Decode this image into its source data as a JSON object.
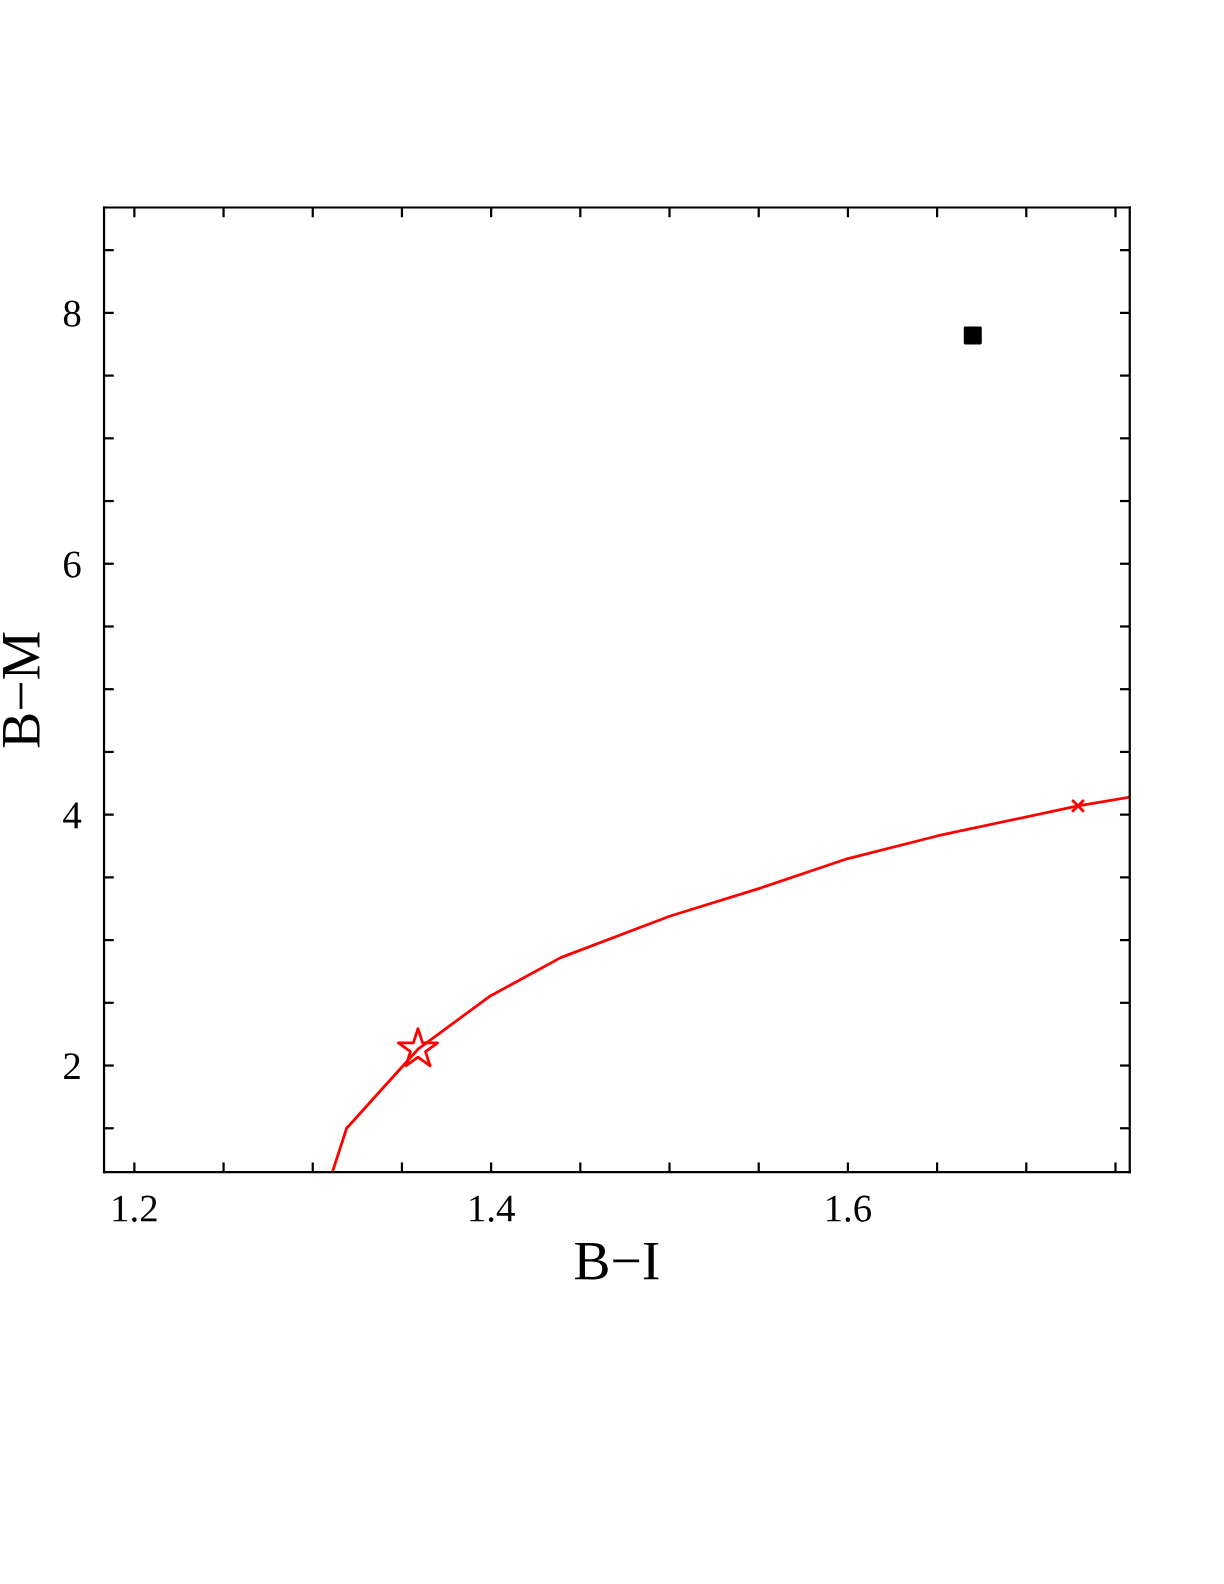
{
  "chart_data": {
    "type": "line",
    "xlabel": "B−I",
    "ylabel": "B−M",
    "xlim": [
      1.183,
      1.758
    ],
    "ylim": [
      1.15,
      8.84
    ],
    "xticks": [
      1.2,
      {
        "value": 1.25,
        "label": null
      },
      {
        "value": 1.3,
        "label": null
      },
      {
        "value": 1.35,
        "label": null
      },
      1.4,
      {
        "value": 1.45,
        "label": null
      },
      {
        "value": 1.5,
        "label": null
      },
      {
        "value": 1.55,
        "label": null
      },
      1.6,
      {
        "value": 1.65,
        "label": null
      },
      {
        "value": 1.7,
        "label": null
      },
      {
        "value": 1.75,
        "label": null
      }
    ],
    "yticks": [
      {
        "value": 1.5,
        "label": null
      },
      2,
      {
        "value": 2.5,
        "label": null
      },
      {
        "value": 3,
        "label": null
      },
      {
        "value": 3.5,
        "label": null
      },
      4,
      {
        "value": 4.5,
        "label": null
      },
      {
        "value": 5,
        "label": null
      },
      {
        "value": 5.5,
        "label": null
      },
      6,
      {
        "value": 6.5,
        "label": null
      },
      {
        "value": 7,
        "label": null
      },
      {
        "value": 7.5,
        "label": null
      },
      8,
      {
        "value": 8.5,
        "label": null
      }
    ],
    "grid": false,
    "series": [
      {
        "color": "#ff0000",
        "marker": "none",
        "line_style": "solid",
        "x": [
          1.311,
          1.319,
          1.359,
          1.399,
          1.439,
          1.5,
          1.55,
          1.6,
          1.65,
          1.729,
          1.758
        ],
        "values": [
          1.15,
          1.5,
          2.13,
          2.55,
          2.86,
          3.19,
          3.41,
          3.65,
          3.83,
          4.07,
          4.14
        ]
      },
      {
        "type": "scatter",
        "color": "#ff0000",
        "marker": "star",
        "x": [
          1.359
        ],
        "values": [
          2.13
        ]
      },
      {
        "type": "scatter",
        "color": "#ff0000",
        "marker": "cross",
        "x": [
          1.729
        ],
        "values": [
          4.07
        ]
      },
      {
        "type": "scatter",
        "color": "#000000",
        "marker": "square",
        "x": [
          1.67
        ],
        "values": [
          7.82
        ]
      }
    ]
  }
}
